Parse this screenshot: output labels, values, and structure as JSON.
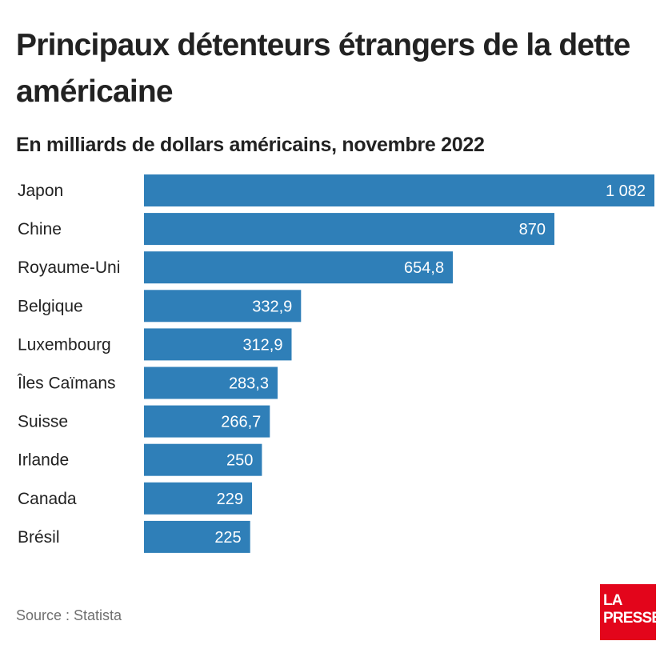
{
  "header": {
    "title": "Principaux détenteurs étrangers de la dette américaine",
    "subtitle": "En milliards de dollars américains, novembre 2022"
  },
  "footer": {
    "source": "Source : Statista",
    "logo_line1": "LA",
    "logo_line2": "PRESSE"
  },
  "colors": {
    "bar": "#2f7fb8",
    "bar_label": "#ffffff",
    "category_label": "#222222",
    "logo_bg": "#e3051b"
  },
  "chart_data": {
    "type": "bar",
    "orientation": "horizontal",
    "title": "Principaux détenteurs étrangers de la dette américaine",
    "subtitle": "En milliards de dollars américains, novembre 2022",
    "categories": [
      "Japon",
      "Chine",
      "Royaume-Uni",
      "Belgique",
      "Luxembourg",
      "Îles Caïmans",
      "Suisse",
      "Irlande",
      "Canada",
      "Brésil"
    ],
    "values": [
      1082,
      870,
      654.8,
      332.9,
      312.9,
      283.3,
      266.7,
      250,
      229,
      225
    ],
    "value_labels": [
      "1 082",
      "870",
      "654,8",
      "332,9",
      "312,9",
      "283,3",
      "266,7",
      "250",
      "229",
      "225"
    ],
    "xlim": [
      0,
      1082
    ],
    "grid": false,
    "legend": "none"
  }
}
